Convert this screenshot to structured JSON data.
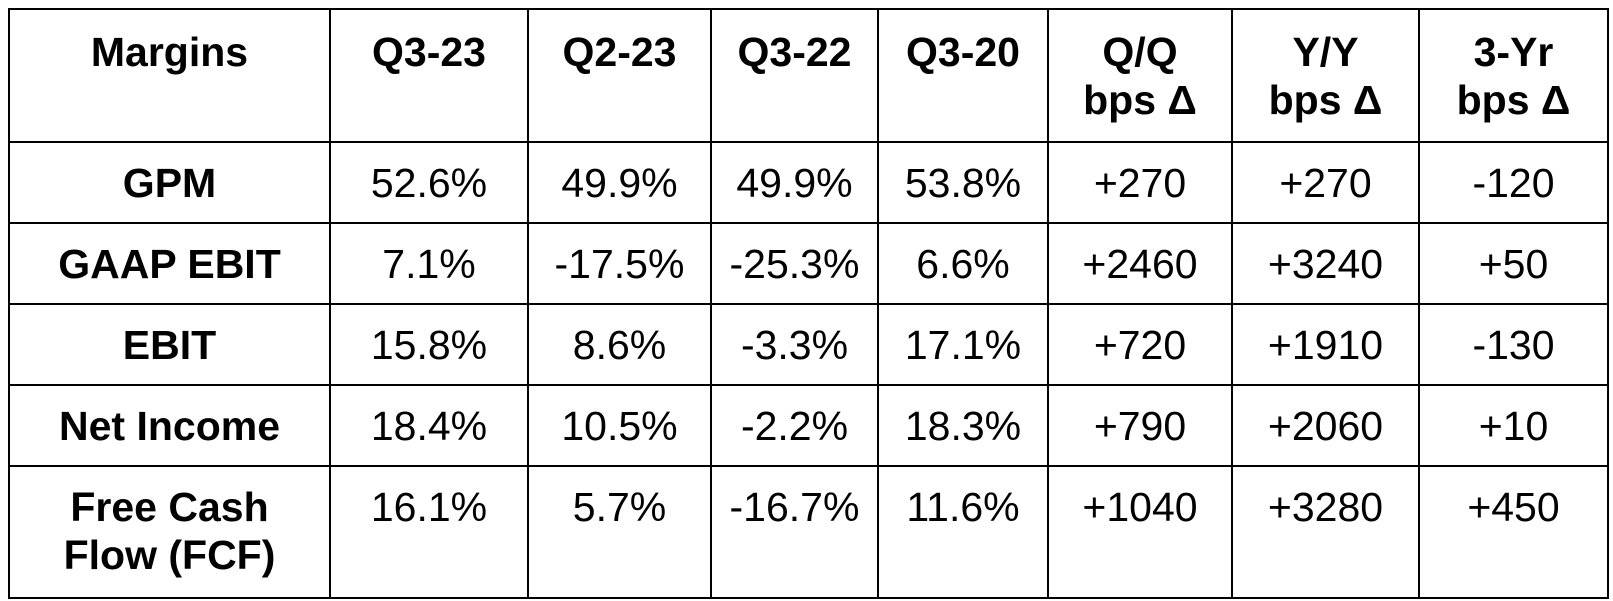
{
  "table": {
    "header": [
      "Margins",
      "Q3-23",
      "Q2-23",
      "Q3-22",
      "Q3-20",
      "Q/Q\nbps Δ",
      "Y/Y\nbps Δ",
      "3-Yr\nbps Δ"
    ],
    "rows": [
      [
        "GPM",
        "52.6%",
        "49.9%",
        "49.9%",
        "53.8%",
        "+270",
        "+270",
        "-120"
      ],
      [
        "GAAP EBIT",
        "7.1%",
        "-17.5%",
        "-25.3%",
        "6.6%",
        "+2460",
        "+3240",
        "+50"
      ],
      [
        "EBIT",
        "15.8%",
        "8.6%",
        "-3.3%",
        "17.1%",
        "+720",
        "+1910",
        "-130"
      ],
      [
        "Net Income",
        "18.4%",
        "10.5%",
        "-2.2%",
        "18.3%",
        "+790",
        "+2060",
        "+10"
      ],
      [
        "Free Cash\nFlow (FCF)",
        "16.1%",
        "5.7%",
        "-16.7%",
        "11.6%",
        "+1040",
        "+3280",
        "+450"
      ]
    ]
  }
}
